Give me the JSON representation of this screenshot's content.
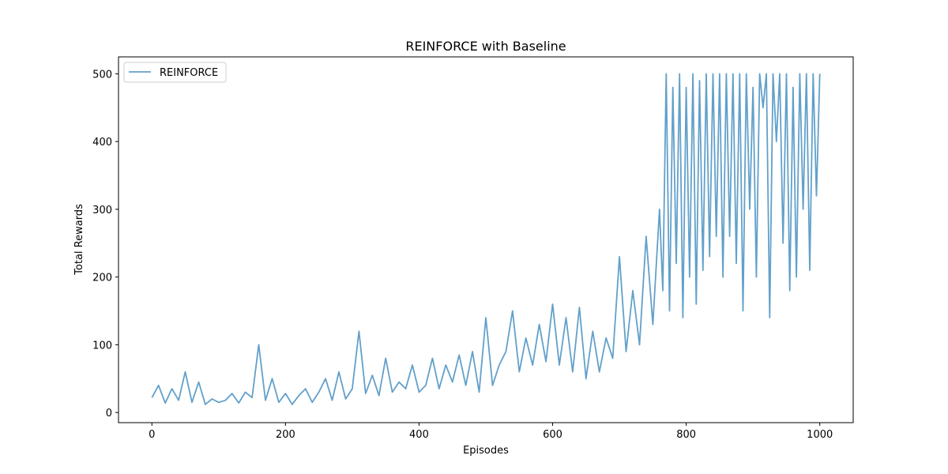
{
  "chart_data": {
    "type": "line",
    "title": "REINFORCE with Baseline",
    "xlabel": "Episodes",
    "ylabel": "Total Rewards",
    "xlim": [
      -50,
      1050
    ],
    "ylim": [
      -15,
      525
    ],
    "xticks": [
      0,
      200,
      400,
      600,
      800,
      1000
    ],
    "yticks": [
      0,
      100,
      200,
      300,
      400,
      500
    ],
    "grid": false,
    "legend_position": "top-left",
    "series": [
      {
        "name": "REINFORCE",
        "color": "#1f77b4",
        "opacity": 0.7,
        "note_values": "approximate values read from the plot, sampled every 10 episodes",
        "x": [
          0,
          10,
          20,
          30,
          40,
          50,
          60,
          70,
          80,
          90,
          100,
          110,
          120,
          130,
          140,
          150,
          160,
          170,
          180,
          190,
          200,
          210,
          220,
          230,
          240,
          250,
          260,
          270,
          280,
          290,
          300,
          310,
          320,
          330,
          340,
          350,
          360,
          370,
          380,
          390,
          400,
          410,
          420,
          430,
          440,
          450,
          460,
          470,
          480,
          490,
          500,
          510,
          520,
          530,
          540,
          550,
          560,
          570,
          580,
          590,
          600,
          610,
          620,
          630,
          640,
          650,
          660,
          670,
          680,
          690,
          700,
          710,
          720,
          730,
          740,
          750,
          760,
          765,
          770,
          775,
          780,
          785,
          790,
          795,
          800,
          805,
          810,
          815,
          820,
          825,
          830,
          835,
          840,
          845,
          850,
          855,
          860,
          865,
          870,
          875,
          880,
          885,
          890,
          895,
          900,
          905,
          910,
          915,
          920,
          925,
          930,
          935,
          940,
          945,
          950,
          955,
          960,
          965,
          970,
          975,
          980,
          985,
          990,
          995,
          1000
        ],
        "y": [
          22,
          40,
          14,
          35,
          18,
          60,
          15,
          45,
          12,
          20,
          15,
          18,
          28,
          14,
          30,
          22,
          100,
          18,
          50,
          15,
          28,
          12,
          25,
          35,
          15,
          30,
          50,
          18,
          60,
          20,
          35,
          120,
          28,
          55,
          25,
          80,
          30,
          45,
          35,
          70,
          30,
          40,
          80,
          35,
          70,
          45,
          85,
          40,
          90,
          30,
          140,
          40,
          70,
          90,
          150,
          60,
          110,
          70,
          130,
          75,
          160,
          70,
          140,
          60,
          155,
          50,
          120,
          60,
          110,
          80,
          230,
          90,
          180,
          100,
          260,
          130,
          300,
          180,
          500,
          150,
          480,
          220,
          500,
          140,
          480,
          200,
          500,
          160,
          490,
          210,
          500,
          230,
          500,
          260,
          500,
          200,
          500,
          260,
          500,
          220,
          500,
          150,
          500,
          300,
          480,
          200,
          500,
          450,
          500,
          140,
          500,
          400,
          500,
          250,
          500,
          180,
          480,
          200,
          500,
          300,
          500,
          210,
          500,
          320,
          500
        ]
      }
    ]
  }
}
